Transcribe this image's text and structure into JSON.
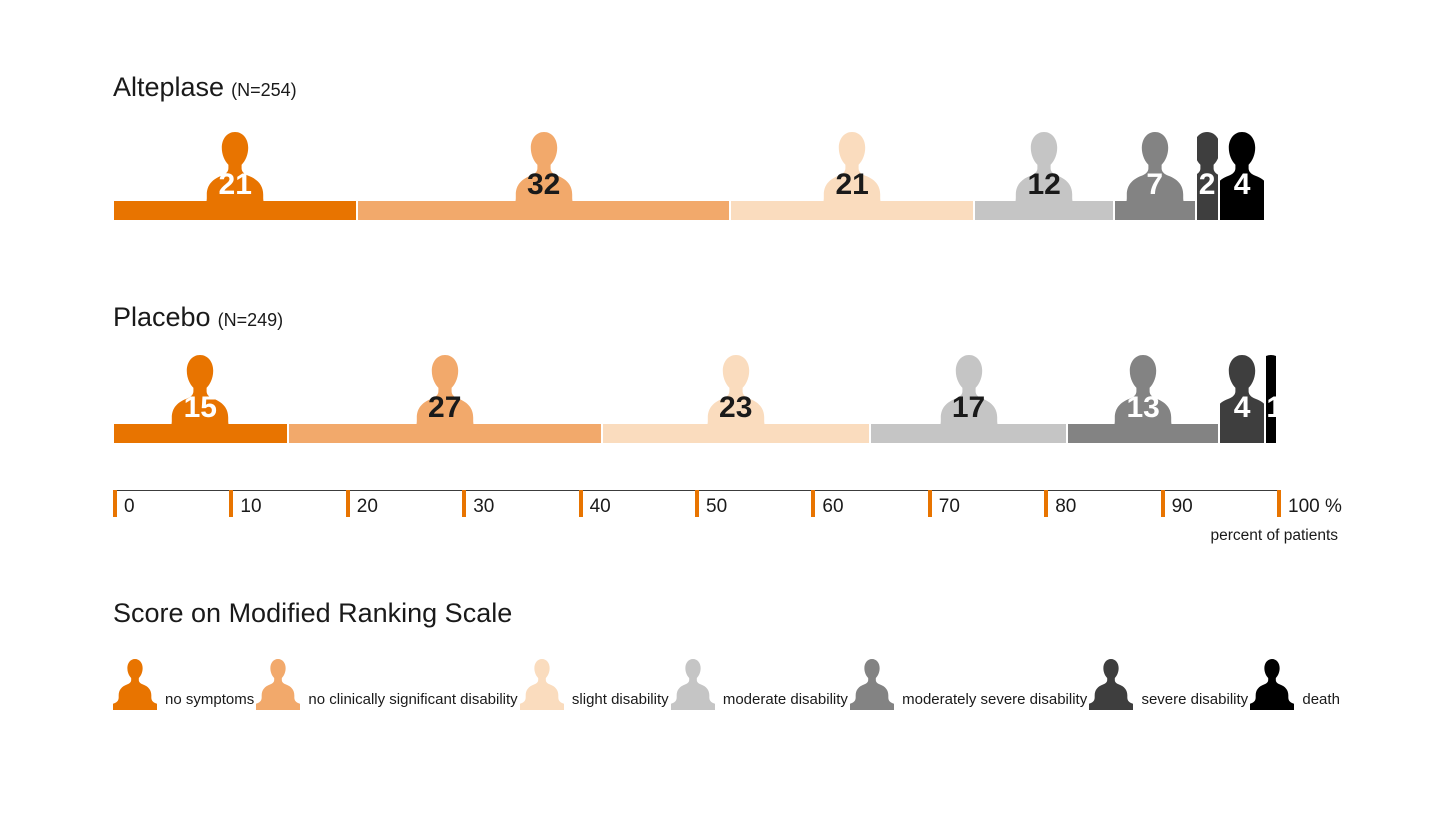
{
  "groups": [
    {
      "name": "Alteplase",
      "n_label": "(N=254)",
      "values": [
        21,
        32,
        21,
        12,
        7,
        2,
        4
      ]
    },
    {
      "name": "Placebo",
      "n_label": "(N=249)",
      "values": [
        15,
        27,
        23,
        17,
        13,
        4,
        1
      ]
    }
  ],
  "categories": [
    {
      "label": "no symptoms",
      "color": "#E87400",
      "number_color": "#FFFFFF"
    },
    {
      "label": "no clinically significant disability",
      "color": "#F2A96B",
      "number_color": "#1A1A1A"
    },
    {
      "label": "slight disability",
      "color": "#FADCBE",
      "number_color": "#1A1A1A"
    },
    {
      "label": "moderate disability",
      "color": "#C5C5C5",
      "number_color": "#1A1A1A"
    },
    {
      "label": "moderately severe disability",
      "color": "#838383",
      "number_color": "#FFFFFF"
    },
    {
      "label": "severe disability",
      "color": "#3E3E3E",
      "number_color": "#FFFFFF"
    },
    {
      "label": "death",
      "color": "#000000",
      "number_color": "#FFFFFF"
    }
  ],
  "axis": {
    "tick_labels": [
      "0",
      "10",
      "20",
      "30",
      "40",
      "50",
      "60",
      "70",
      "80",
      "90",
      "100 %"
    ],
    "axis_label": "percent of patients",
    "tick_color": "#E87400",
    "line_color": "#3C3C3C",
    "range": [
      0,
      100
    ]
  },
  "legend_title": "Score on Modified Ranking Scale",
  "chart_data": {
    "type": "bar",
    "stacked": true,
    "orientation": "horizontal",
    "title": "Score on Modified Ranking Scale",
    "xlabel": "percent of patients",
    "xlim": [
      0,
      100
    ],
    "x_ticks": [
      0,
      10,
      20,
      30,
      40,
      50,
      60,
      70,
      80,
      90,
      100
    ],
    "categories": [
      "no symptoms",
      "no clinically significant disability",
      "slight disability",
      "moderate disability",
      "moderately severe disability",
      "severe disability",
      "death"
    ],
    "series": [
      {
        "name": "Alteplase (N=254)",
        "values": [
          21,
          32,
          21,
          12,
          7,
          2,
          4
        ]
      },
      {
        "name": "Placebo (N=249)",
        "values": [
          15,
          27,
          23,
          17,
          13,
          4,
          1
        ]
      }
    ],
    "legend_position": "bottom",
    "grid": false
  }
}
